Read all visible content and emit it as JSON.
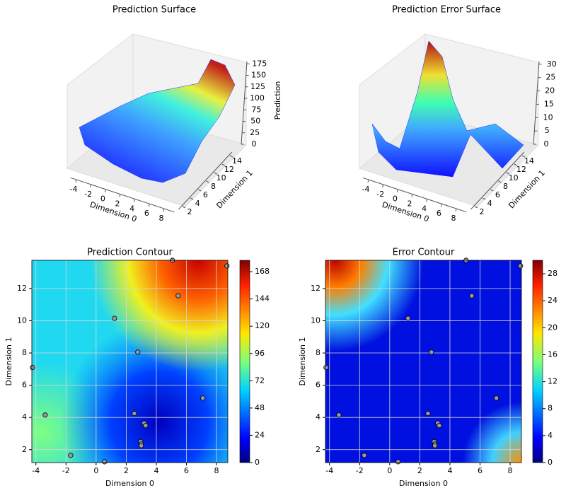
{
  "chart_data": [
    {
      "type": "surface3d",
      "title": "Prediction Surface",
      "xlabel": "Dimension 0",
      "ylabel": "Dimension 1",
      "zlabel": "Prediction",
      "xlim": [
        -4.8,
        9.4
      ],
      "xticks": [
        -4,
        -2,
        0,
        2,
        4,
        6,
        8
      ],
      "ylim": [
        1,
        14.5
      ],
      "yticks": [
        2,
        4,
        6,
        8,
        10,
        12,
        14
      ],
      "zlim": [
        0,
        180
      ],
      "zticks": [
        0,
        25,
        50,
        75,
        100,
        125,
        150,
        175
      ]
    },
    {
      "type": "surface3d",
      "title": "Prediction Error Surface",
      "xlabel": "Dimension 0",
      "ylabel": "Dimension 1",
      "xlim": [
        -4.8,
        9.4
      ],
      "xticks": [
        -4,
        -2,
        0,
        2,
        4,
        6,
        8
      ],
      "ylim": [
        1,
        14.5
      ],
      "yticks": [
        2,
        4,
        6,
        8,
        10,
        12,
        14
      ],
      "zlim": [
        0,
        31
      ],
      "zticks": [
        0,
        5,
        10,
        15,
        20,
        25,
        30
      ]
    },
    {
      "type": "contour",
      "title": "Prediction Contour",
      "xlabel": "Dimension 0",
      "ylabel": "Dimension 1",
      "xlim": [
        -4.27,
        8.75
      ],
      "xticks": [
        -4,
        -2,
        0,
        2,
        4,
        6,
        8
      ],
      "ylim": [
        1.2,
        13.75
      ],
      "yticks": [
        2,
        4,
        6,
        8,
        10,
        12
      ],
      "grid": true,
      "points": {
        "x": [
          5.07,
          8.69,
          5.45,
          1.22,
          2.77,
          -4.23,
          7.09,
          -3.38,
          2.54,
          3.19,
          3.29,
          2.96,
          3.0,
          3.0,
          -1.69,
          0.56
        ],
        "y": [
          13.75,
          13.4,
          11.55,
          10.15,
          8.05,
          7.1,
          5.2,
          4.15,
          4.25,
          3.65,
          3.5,
          2.5,
          2.35,
          2.25,
          1.65,
          1.25
        ]
      },
      "clim": [
        0,
        178
      ],
      "cticks": [
        0,
        24,
        48,
        72,
        96,
        120,
        144,
        168
      ]
    },
    {
      "type": "contour",
      "title": "Error Contour",
      "xlabel": "Dimension 0",
      "ylabel": "Dimension 1",
      "xlim": [
        -4.27,
        8.75
      ],
      "xticks": [
        -4,
        -2,
        0,
        2,
        4,
        6,
        8
      ],
      "ylim": [
        1.2,
        13.75
      ],
      "yticks": [
        2,
        4,
        6,
        8,
        10,
        12
      ],
      "grid": true,
      "points": {
        "x": [
          5.07,
          8.69,
          5.45,
          1.22,
          2.77,
          -4.23,
          7.09,
          -3.38,
          2.54,
          3.19,
          3.29,
          2.96,
          3.0,
          3.0,
          -1.69,
          0.56
        ],
        "y": [
          13.75,
          13.4,
          11.55,
          10.15,
          8.05,
          7.1,
          5.2,
          4.15,
          4.25,
          3.65,
          3.5,
          2.5,
          2.35,
          2.25,
          1.65,
          1.25
        ]
      },
      "clim": [
        0,
        30
      ],
      "cticks": [
        0,
        4,
        8,
        12,
        16,
        20,
        24,
        28
      ]
    }
  ]
}
